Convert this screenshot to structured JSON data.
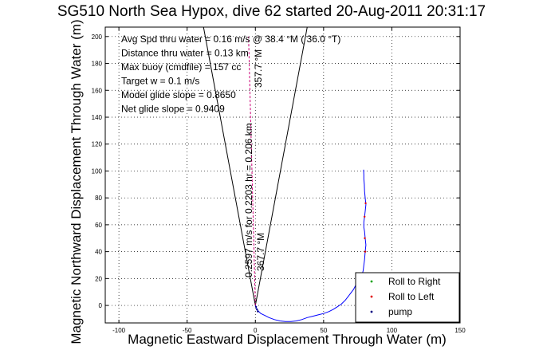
{
  "chart_data": {
    "type": "scatter",
    "title": "SG510 North Sea Hypox, dive 62 started 20-Aug-2011 20:31:17",
    "xlabel": "Magnetic Eastward Displacement Through Water (m)",
    "ylabel": "Magnetic Northward Displacement Through Water (m)",
    "xlim": [
      -110,
      150
    ],
    "ylim": [
      -13,
      207
    ],
    "xticks": [
      -100,
      -50,
      0,
      50,
      100,
      150
    ],
    "yticks": [
      0,
      20,
      40,
      60,
      80,
      100,
      120,
      140,
      160,
      180,
      200
    ],
    "grid": true,
    "legend_position": "bottom-right",
    "legend": [
      {
        "label": "Roll to Right",
        "marker": "·",
        "color": "#00a000"
      },
      {
        "label": "Roll to Left",
        "marker": "·",
        "color": "#e00000"
      },
      {
        "label": "pump",
        "marker": "·",
        "color": "#000080"
      }
    ],
    "annotations": [
      "Avg Spd thru water =  0.16 m/s @  38.4   °M ( 36.0 °T)",
      "Distance thru water =  0.13 km",
      "Max buoy (cmdfile) = 157 cc",
      "Target w = 0.1 m/s",
      "Model glide slope = 0.8650",
      "Net glide slope = 0.9409"
    ],
    "rotated_labels": [
      "0.2597 m/s for 0.2203 hr = 0.206 km",
      "367.7 °M",
      "357.7 °M"
    ],
    "guide_lines": [
      {
        "name": "heading-ray-left",
        "x": [
          0,
          -38
        ],
        "y": [
          0,
          207
        ]
      },
      {
        "name": "heading-ray-right",
        "x": [
          0,
          38
        ],
        "y": [
          0,
          207
        ]
      }
    ],
    "series": [
      {
        "name": "track",
        "color": "#0000ff",
        "x": [
          0,
          0.8,
          2,
          4,
          7,
          10,
          14,
          18,
          22,
          26,
          30,
          34,
          38,
          42,
          46,
          50,
          54,
          57,
          60,
          63,
          66,
          69,
          72,
          74,
          76,
          78,
          79,
          79.5,
          80,
          80.5,
          81,
          80.5,
          80,
          79.5,
          79.5,
          80,
          80.5,
          81,
          80.5,
          80,
          79.8,
          79.5,
          79.5,
          79.3
        ],
        "y": [
          0,
          -2,
          -4,
          -6,
          -7.5,
          -9,
          -10.5,
          -11.5,
          -12,
          -12,
          -11.5,
          -10.5,
          -9,
          -8,
          -7,
          -6,
          -4.5,
          -3,
          -1,
          1,
          4,
          8,
          12,
          16,
          19,
          22,
          26,
          30,
          34,
          40,
          45,
          50,
          55,
          58,
          62,
          66,
          70,
          75,
          80,
          85,
          90,
          94,
          97,
          101
        ]
      },
      {
        "name": "Roll to Left",
        "color": "#e00000",
        "x": [
          80.5,
          80.2,
          80,
          80.8
        ],
        "y": [
          40,
          50,
          66,
          76
        ]
      },
      {
        "name": "pump",
        "color": "#000080",
        "x": [
          0.5,
          1.2,
          1.8
        ],
        "y": [
          -1,
          -3,
          -4.5
        ]
      }
    ]
  }
}
